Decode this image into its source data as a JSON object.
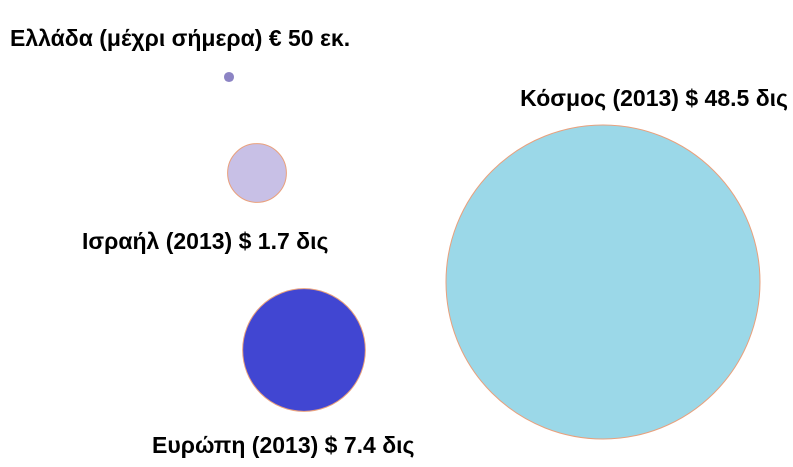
{
  "chart_data": {
    "type": "bubble",
    "categories": [
      "Ελλάδα (μέχρι σήμερα)",
      "Ισραήλ (2013)",
      "Ευρώπη (2013)",
      "Κόσμος (2013)"
    ],
    "values": [
      0.05,
      1.7,
      7.4,
      48.5
    ],
    "value_labels": [
      "€ 50 εκ.",
      "$ 1.7 δις",
      "$ 7.4 δις",
      "$ 48.5 δις"
    ],
    "colors": [
      "#8c84c4",
      "#c8c0e6",
      "#4146d2",
      "#9bd8e8"
    ]
  }
}
